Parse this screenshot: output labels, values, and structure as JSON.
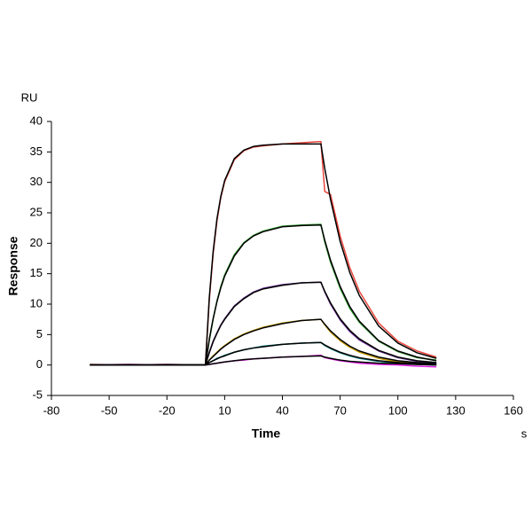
{
  "chart_data": {
    "type": "line",
    "y_unit": "RU",
    "y_label": "Response",
    "x_label": "Time",
    "x_unit": "s",
    "xlim": [
      -80,
      160
    ],
    "xticks": [
      -80,
      -50,
      -20,
      10,
      40,
      70,
      100,
      130,
      160
    ],
    "ylim": [
      -5,
      40
    ],
    "yticks": [
      -5,
      0,
      5,
      10,
      15,
      20,
      25,
      30,
      35,
      40
    ],
    "x": [
      -60,
      -40,
      -20,
      0,
      2,
      4,
      6,
      8,
      10,
      15,
      20,
      25,
      30,
      40,
      50,
      60,
      62,
      65,
      70,
      75,
      80,
      90,
      100,
      110,
      120
    ],
    "series": [
      {
        "color": "#e8463c",
        "values": [
          0.1,
          0,
          0.1,
          0,
          10.6,
          18.2,
          23.7,
          27.5,
          30.1,
          33.7,
          35.2,
          35.8,
          36.0,
          36.3,
          36.5,
          36.7,
          28.5,
          28.0,
          21.2,
          16.0,
          12.1,
          6.9,
          3.9,
          2.3,
          1.3
        ]
      },
      {
        "color": "#2ca02c",
        "values": [
          0,
          0.1,
          0,
          0,
          4.0,
          7.5,
          10.5,
          12.9,
          14.8,
          18.1,
          20.1,
          21.3,
          22.0,
          22.8,
          23.0,
          23.1,
          20.2,
          16.9,
          12.6,
          9.3,
          7.0,
          3.9,
          2.2,
          1.2,
          0.8
        ]
      },
      {
        "color": "#7030a0",
        "values": [
          0,
          0,
          0.1,
          0,
          2.1,
          3.9,
          5.3,
          6.6,
          7.6,
          9.7,
          11.0,
          12.0,
          12.6,
          13.2,
          13.5,
          13.6,
          12.0,
          10.0,
          7.4,
          5.5,
          4.1,
          2.3,
          1.2,
          0.6,
          0.3
        ]
      },
      {
        "color": "#c8a000",
        "values": [
          0,
          0,
          0,
          0,
          0.8,
          1.5,
          2.1,
          2.7,
          3.2,
          4.3,
          5.1,
          5.7,
          6.2,
          6.9,
          7.3,
          7.5,
          6.6,
          5.4,
          4.0,
          2.9,
          2.1,
          1.1,
          0.5,
          0.3,
          0.1
        ]
      },
      {
        "color": "#008080",
        "values": [
          0,
          0,
          0,
          0,
          0.4,
          0.7,
          1.1,
          1.3,
          1.6,
          2.1,
          2.5,
          2.8,
          3.1,
          3.4,
          3.6,
          3.7,
          3.2,
          2.7,
          2.0,
          1.5,
          1.1,
          0.6,
          0.3,
          0.1,
          0.0
        ]
      },
      {
        "color": "#e020e0",
        "values": [
          0,
          0.1,
          0,
          0,
          0.1,
          0.2,
          0.3,
          0.4,
          0.5,
          0.7,
          0.8,
          1.0,
          1.1,
          1.3,
          1.4,
          1.6,
          1.2,
          1.0,
          0.7,
          0.5,
          0.3,
          0.1,
          0.0,
          -0.2,
          -0.3
        ]
      },
      {
        "color": "#000000",
        "values": [
          0,
          0,
          0,
          0,
          11.0,
          18.6,
          24.0,
          27.7,
          30.3,
          33.9,
          35.3,
          35.9,
          36.1,
          36.3,
          36.3,
          36.3,
          32.3,
          27.2,
          20.3,
          15.2,
          11.4,
          6.4,
          3.6,
          2.0,
          1.1
        ]
      },
      {
        "color": "#000000",
        "values": [
          0,
          0,
          0,
          0,
          4.2,
          7.6,
          10.4,
          12.7,
          14.6,
          17.9,
          20.0,
          21.2,
          21.9,
          22.7,
          22.9,
          23.0,
          20.5,
          17.2,
          12.9,
          9.6,
          7.2,
          4.0,
          2.3,
          1.3,
          0.7
        ]
      },
      {
        "color": "#000000",
        "values": [
          0,
          0,
          0,
          0,
          2.0,
          3.8,
          5.2,
          6.5,
          7.5,
          9.6,
          10.9,
          11.9,
          12.5,
          13.1,
          13.5,
          13.6,
          12.1,
          10.2,
          7.6,
          5.7,
          4.3,
          2.4,
          1.3,
          0.7,
          0.4
        ]
      },
      {
        "color": "#000000",
        "values": [
          0,
          0,
          0,
          0,
          0.8,
          1.4,
          2.0,
          2.6,
          3.1,
          4.2,
          5.0,
          5.6,
          6.1,
          6.8,
          7.3,
          7.5,
          6.7,
          5.6,
          4.2,
          3.1,
          2.3,
          1.3,
          0.7,
          0.4,
          0.2
        ]
      },
      {
        "color": "#000000",
        "values": [
          0,
          0,
          0,
          0,
          0.4,
          0.7,
          1.0,
          1.3,
          1.5,
          2.1,
          2.5,
          2.8,
          3.0,
          3.4,
          3.6,
          3.7,
          3.3,
          2.8,
          2.1,
          1.6,
          1.2,
          0.7,
          0.4,
          0.2,
          0.1
        ]
      },
      {
        "color": "#000000",
        "values": [
          0,
          0,
          0,
          0,
          0.1,
          0.2,
          0.3,
          0.4,
          0.5,
          0.7,
          0.9,
          1.0,
          1.1,
          1.3,
          1.4,
          1.5,
          1.3,
          1.1,
          0.8,
          0.6,
          0.5,
          0.3,
          0.2,
          0.1,
          0.0
        ]
      }
    ]
  }
}
